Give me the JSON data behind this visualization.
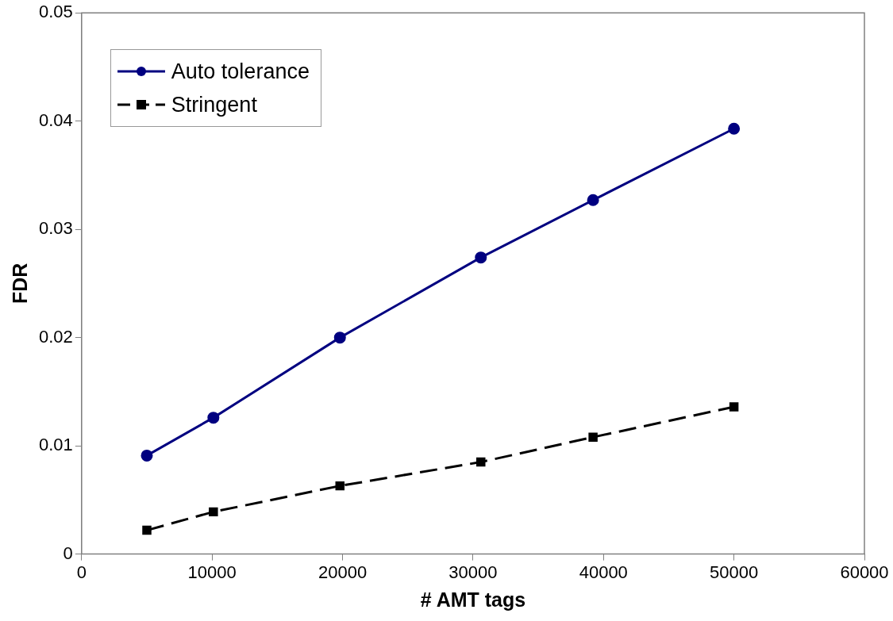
{
  "chart_data": {
    "type": "line",
    "xlabel": "# AMT tags",
    "ylabel": "FDR",
    "x": [
      5000,
      10100,
      19800,
      30600,
      39200,
      50000
    ],
    "series": [
      {
        "name": "Auto tolerance",
        "color": "#000080",
        "values": [
          0.0091,
          0.0126,
          0.02,
          0.0274,
          0.0327,
          0.0393
        ],
        "marker": "circle",
        "line_style": "solid"
      },
      {
        "name": "Stringent",
        "color": "#000000",
        "values": [
          0.0022,
          0.0039,
          0.0063,
          0.0085,
          0.0108,
          0.0136
        ],
        "marker": "square",
        "line_style": "dashed"
      }
    ],
    "xlim": [
      0,
      60000
    ],
    "xticks": [
      0,
      10000,
      20000,
      30000,
      40000,
      50000,
      60000
    ],
    "ylim": [
      0,
      0.05
    ],
    "yticks": [
      0,
      0.01,
      0.02,
      0.03,
      0.04,
      0.05
    ],
    "grid": false,
    "legend": "top left"
  }
}
